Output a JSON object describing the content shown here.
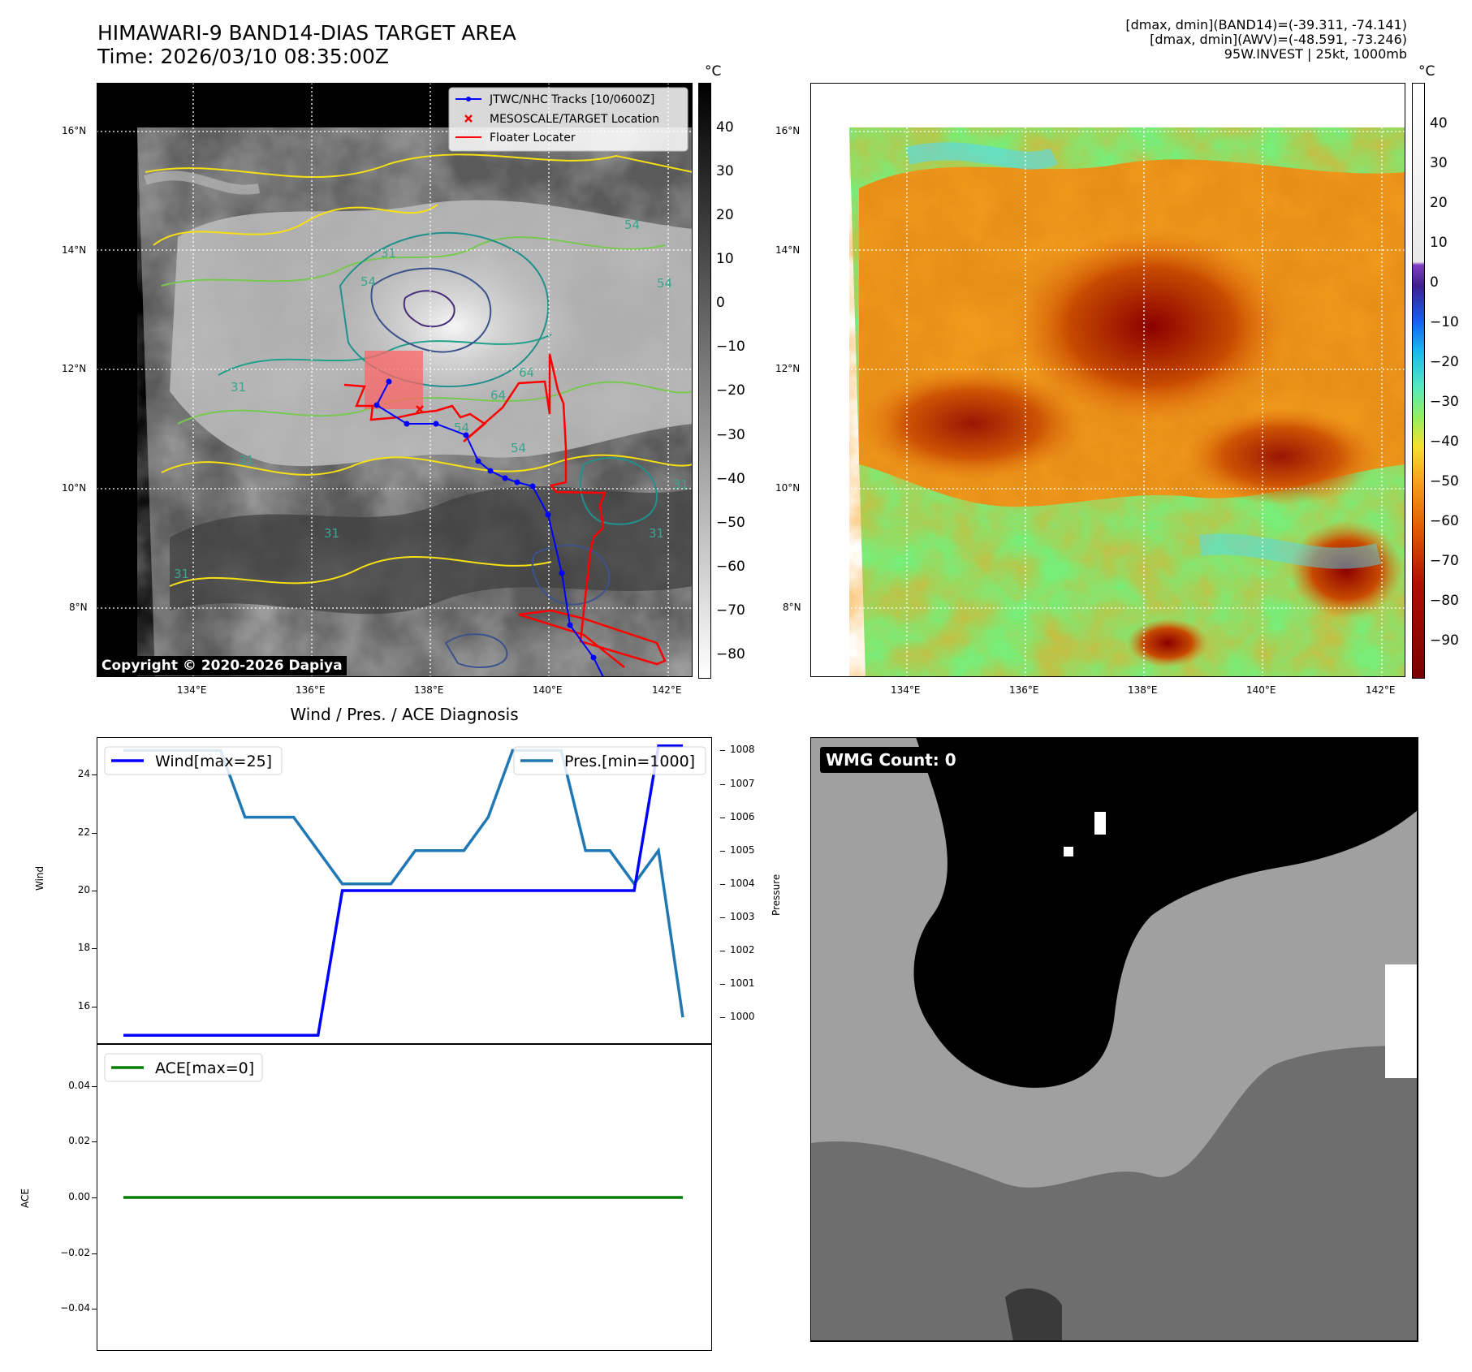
{
  "header": {
    "title_line1": "HIMAWARI-9 BAND14-DIAS TARGET AREA",
    "title_line2": "Time: 2026/03/10 08:35:00Z",
    "info_line1": "[dmax, dmin](BAND14)=(-39.311, -74.141)",
    "info_line2": "[dmax, dmin](AWV)=(-48.591, -73.246)",
    "info_line3": "95W.INVEST | 25kt, 1000mb"
  },
  "map": {
    "lat_ticks": [
      "16°N",
      "14°N",
      "12°N",
      "10°N",
      "8°N"
    ],
    "lon_ticks": [
      "134°E",
      "136°E",
      "138°E",
      "140°E",
      "142°E"
    ],
    "copyright": "Copyright © 2020-2026 Dapiya",
    "legend": [
      {
        "label": "JTWC/NHC Tracks [10/0600Z]",
        "color": "#0000ff"
      },
      {
        "label": "MESOSCALE/TARGET Location",
        "color": "#ff0000"
      },
      {
        "label": "Floater Locater",
        "color": "#ff0000"
      }
    ],
    "contour_labels": [
      "54",
      "54",
      "31",
      "54",
      "31",
      "31",
      "64",
      "54",
      "64",
      "54",
      "31",
      "31",
      "31",
      "31"
    ]
  },
  "colorbar_left": {
    "unit": "°C",
    "ticks": [
      "40",
      "30",
      "20",
      "10",
      "0",
      "−10",
      "−20",
      "−30",
      "−40",
      "−50",
      "−60",
      "−70",
      "−80"
    ]
  },
  "colorbar_right": {
    "unit": "°C",
    "ticks": [
      "40",
      "30",
      "20",
      "10",
      "0",
      "−10",
      "−20",
      "−30",
      "−40",
      "−50",
      "−60",
      "−70",
      "−80",
      "−90"
    ]
  },
  "colors": {
    "wind": "#0000ff",
    "pressure": "#1f77b4",
    "ace": "#008000",
    "track": "#0000ff",
    "floater": "#ff0000"
  },
  "wmg": {
    "label": "WMG Count: 0"
  },
  "diagnosis": {
    "title": "Wind / Pres. / ACE Diagnosis",
    "wind_legend": "Wind[max=25]",
    "pres_legend": "Pres.[min=1000]",
    "ace_legend": "ACE[max=0]",
    "wind_ylabel": "Wind",
    "pres_ylabel": "Pressure",
    "ace_ylabel": "ACE",
    "wind_ticks": [
      "24",
      "22",
      "20",
      "18",
      "16"
    ],
    "pres_ticks": [
      "1008",
      "1007",
      "1006",
      "1005",
      "1004",
      "1003",
      "1002",
      "1001",
      "1000"
    ],
    "ace_ticks": [
      "0.04",
      "0.02",
      "0.00",
      "−0.02",
      "−0.04"
    ]
  },
  "chart_data": [
    {
      "type": "line",
      "title": "Wind / Pres. / ACE Diagnosis",
      "x": [
        0,
        1,
        2,
        3,
        4,
        5,
        6,
        7,
        8,
        9,
        10,
        11,
        12,
        13,
        14,
        15,
        16,
        17,
        18,
        19,
        20,
        21,
        22,
        23
      ],
      "ylim": [
        14.7,
        25.3
      ],
      "y2lim": [
        999.2,
        1008.4
      ],
      "series": [
        {
          "name": "Wind[max=25]",
          "axis": "left",
          "values": [
            15,
            15,
            15,
            15,
            15,
            15,
            15,
            15,
            15,
            20,
            20,
            20,
            20,
            20,
            20,
            20,
            20,
            20,
            20,
            20,
            20,
            20,
            25,
            25
          ]
        },
        {
          "name": "Pres.[min=1000]",
          "axis": "right",
          "values": [
            1008,
            1008,
            1008,
            1008,
            1008,
            1006,
            1006,
            1006,
            1005,
            1004,
            1004,
            1004,
            1005,
            1005,
            1005,
            1006,
            1008,
            1008,
            1008,
            1005,
            1005,
            1004,
            1005,
            1000
          ]
        }
      ]
    },
    {
      "type": "line",
      "x": [
        0,
        1,
        2,
        3,
        4,
        5,
        6,
        7,
        8,
        9,
        10,
        11,
        12,
        13,
        14,
        15,
        16,
        17,
        18,
        19,
        20,
        21,
        22,
        23
      ],
      "ylim": [
        -0.055,
        0.055
      ],
      "series": [
        {
          "name": "ACE[max=0]",
          "values": [
            0,
            0,
            0,
            0,
            0,
            0,
            0,
            0,
            0,
            0,
            0,
            0,
            0,
            0,
            0,
            0,
            0,
            0,
            0,
            0,
            0,
            0,
            0,
            0
          ]
        }
      ]
    }
  ]
}
